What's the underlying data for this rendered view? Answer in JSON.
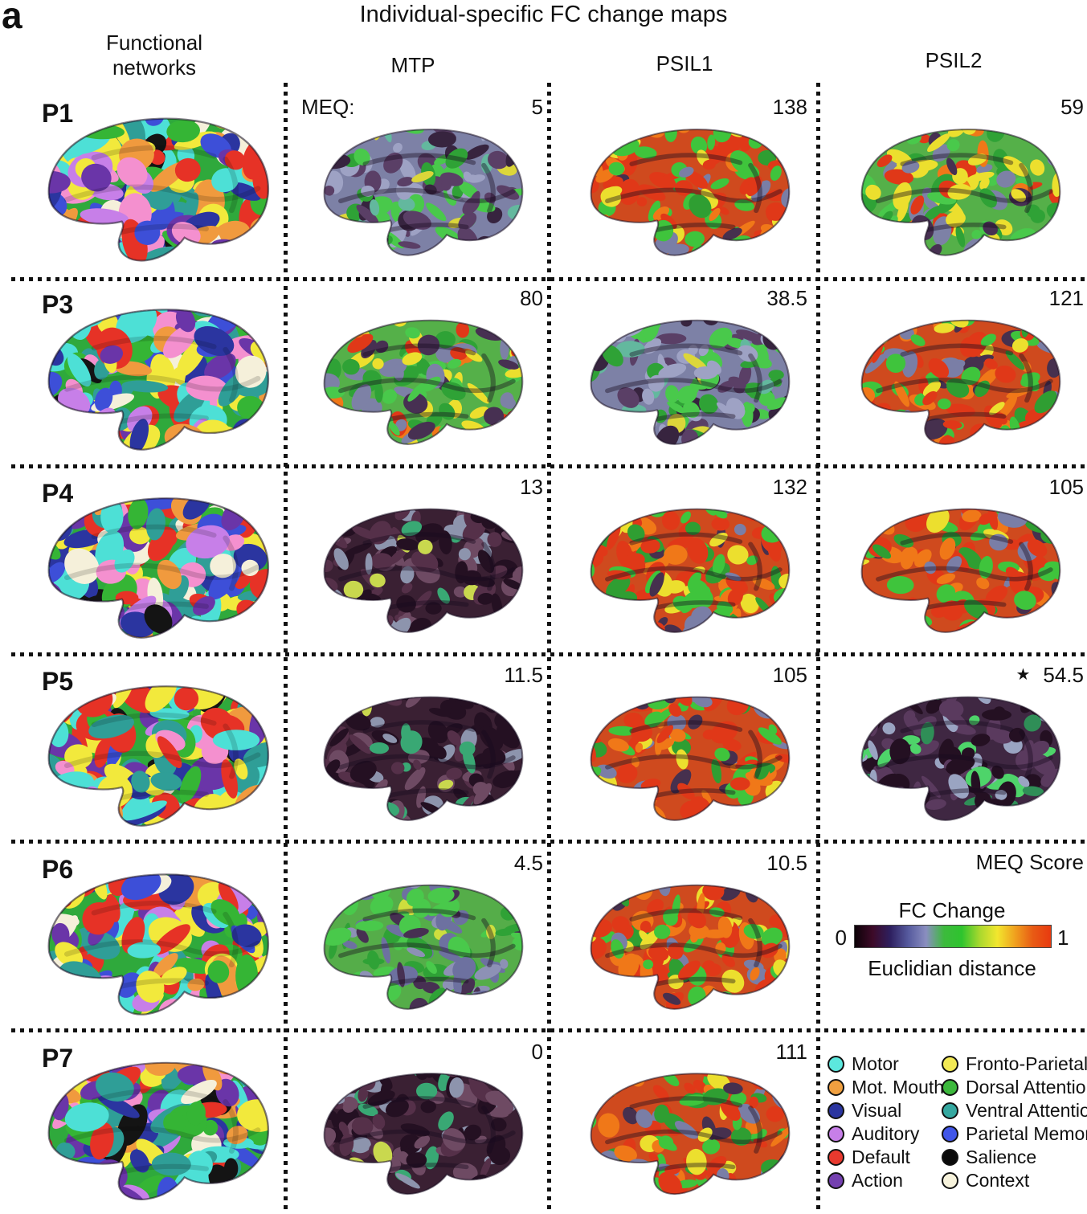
{
  "panel_label": "a",
  "title": "Individual-specific FC change maps",
  "columns": [
    "Functional networks",
    "MTP",
    "PSIL1",
    "PSIL2"
  ],
  "meq_prefix": "MEQ:",
  "meq_score_label": "MEQ Score",
  "rows": [
    {
      "label": "P1",
      "maps": [
        {
          "kind": "networks"
        },
        {
          "kind": "fc",
          "score": "5",
          "heat": "mid"
        },
        {
          "kind": "fc",
          "score": "138",
          "heat": "veryhigh"
        },
        {
          "kind": "fc",
          "score": "59",
          "heat": "highgreen"
        }
      ]
    },
    {
      "label": "P3",
      "maps": [
        {
          "kind": "networks"
        },
        {
          "kind": "fc",
          "score": "80",
          "heat": "highgreen"
        },
        {
          "kind": "fc",
          "score": "38.5",
          "heat": "mid"
        },
        {
          "kind": "fc",
          "score": "121",
          "heat": "veryhigh"
        }
      ]
    },
    {
      "label": "P4",
      "maps": [
        {
          "kind": "networks"
        },
        {
          "kind": "fc",
          "score": "13",
          "heat": "verylow"
        },
        {
          "kind": "fc",
          "score": "132",
          "heat": "veryhigh"
        },
        {
          "kind": "fc",
          "score": "105",
          "heat": "veryhigh"
        }
      ]
    },
    {
      "label": "P5",
      "maps": [
        {
          "kind": "networks"
        },
        {
          "kind": "fc",
          "score": "11.5",
          "heat": "verylow"
        },
        {
          "kind": "fc",
          "score": "105",
          "heat": "veryhigh"
        },
        {
          "kind": "fc",
          "score": "54.5",
          "note": "★",
          "heat": "low"
        }
      ]
    },
    {
      "label": "P6",
      "maps": [
        {
          "kind": "networks"
        },
        {
          "kind": "fc",
          "score": "4.5",
          "heat": "midgreen"
        },
        {
          "kind": "fc",
          "score": "10.5",
          "heat": "veryhigh"
        },
        {
          "kind": "colorbar-area"
        }
      ]
    },
    {
      "label": "P7",
      "maps": [
        {
          "kind": "networks"
        },
        {
          "kind": "fc",
          "score": "0",
          "heat": "verylow"
        },
        {
          "kind": "fc",
          "score": "111",
          "heat": "veryhigh"
        },
        {
          "kind": "legend-area"
        }
      ]
    }
  ],
  "colorbar": {
    "title": "FC Change",
    "min": "0",
    "max": "1",
    "label": "Euclidian distance",
    "gradient": [
      "#0d0208",
      "#3d0a28",
      "#2e2060",
      "#565a9e",
      "#8a8ec0",
      "#3dba3d",
      "#2ec42e",
      "#a8d82e",
      "#f2e62e",
      "#f0a01e",
      "#e85a14",
      "#e83a10"
    ]
  },
  "legend": {
    "columns": [
      [
        {
          "label": "Motor",
          "color": "#5ce8de"
        },
        {
          "label": "Mot. Mouth",
          "color": "#f0a040"
        },
        {
          "label": "Visual",
          "color": "#2b35a0"
        },
        {
          "label": "Auditory",
          "color": "#c77fe8"
        },
        {
          "label": "Default",
          "color": "#e8392e"
        },
        {
          "label": "Action",
          "color": "#7440b0"
        }
      ],
      [
        {
          "label": "Fronto-Parietal",
          "color": "#f2e955"
        },
        {
          "label": "Dorsal Attention",
          "color": "#3cb83c"
        },
        {
          "label": "Ventral Attention",
          "color": "#35a8a0"
        },
        {
          "label": "Parietal Memory",
          "color": "#4156e8"
        },
        {
          "label": "Salience",
          "color": "#0a0a0a"
        },
        {
          "label": "Context",
          "color": "#f7f3dc"
        }
      ]
    ]
  },
  "palettes": {
    "networks": {
      "base": "#2fa93c",
      "blobs": [
        [
          "#e63226",
          6
        ],
        [
          "#f2e93c",
          6
        ],
        [
          "#4de0d6",
          5
        ],
        [
          "#2b35a0",
          4
        ],
        [
          "#f09a3e",
          3
        ],
        [
          "#c77fe8",
          2
        ],
        [
          "#f490cf",
          2
        ],
        [
          "#6a35a8",
          4
        ],
        [
          "#2f9e97",
          4
        ],
        [
          "#3d4fd8",
          2
        ],
        [
          "#141414",
          1.5
        ],
        [
          "#f5f0da",
          2
        ],
        [
          "#35b535",
          3
        ]
      ]
    },
    "verylow": {
      "base": "#3a2033",
      "blobs": [
        [
          "#241022",
          6
        ],
        [
          "#553049",
          4
        ],
        [
          "#6e4a63",
          3
        ],
        [
          "#8d94ad",
          2
        ],
        [
          "#39a874",
          1
        ],
        [
          "#c9d84e",
          0.4
        ]
      ]
    },
    "low": {
      "base": "#3f2742",
      "blobs": [
        [
          "#241022",
          5
        ],
        [
          "#5a3a5e",
          4
        ],
        [
          "#9aa4c2",
          3
        ],
        [
          "#4ed46a",
          2
        ],
        [
          "#2f8e57",
          1
        ]
      ]
    },
    "mid": {
      "base": "#7d81a6",
      "blobs": [
        [
          "#49c94b",
          5
        ],
        [
          "#2fa236",
          2
        ],
        [
          "#9ea2c4",
          4
        ],
        [
          "#5a3f66",
          3
        ],
        [
          "#37243f",
          3
        ],
        [
          "#dcd63a",
          1
        ],
        [
          "#63b89e",
          1
        ]
      ]
    },
    "midgreen": {
      "base": "#55ad49",
      "blobs": [
        [
          "#49c94b",
          5
        ],
        [
          "#8d91b5",
          4
        ],
        [
          "#6d71a0",
          3
        ],
        [
          "#2fa236",
          3
        ],
        [
          "#473052",
          2
        ],
        [
          "#cede3e",
          1
        ]
      ]
    },
    "highgreen": {
      "base": "#55b049",
      "blobs": [
        [
          "#e03818",
          2
        ],
        [
          "#f07818",
          2
        ],
        [
          "#ecdf2e",
          4
        ],
        [
          "#2fa236",
          4
        ],
        [
          "#7d81a6",
          3
        ],
        [
          "#473052",
          2
        ],
        [
          "#49c94b",
          3
        ]
      ]
    },
    "veryhigh": {
      "base": "#cf4a1e",
      "blobs": [
        [
          "#e03818",
          6
        ],
        [
          "#f07818",
          3
        ],
        [
          "#ecdf2e",
          2
        ],
        [
          "#3fc43c",
          4
        ],
        [
          "#2f9e32",
          2
        ],
        [
          "#7a7ea6",
          2
        ],
        [
          "#46304e",
          1
        ]
      ]
    }
  }
}
